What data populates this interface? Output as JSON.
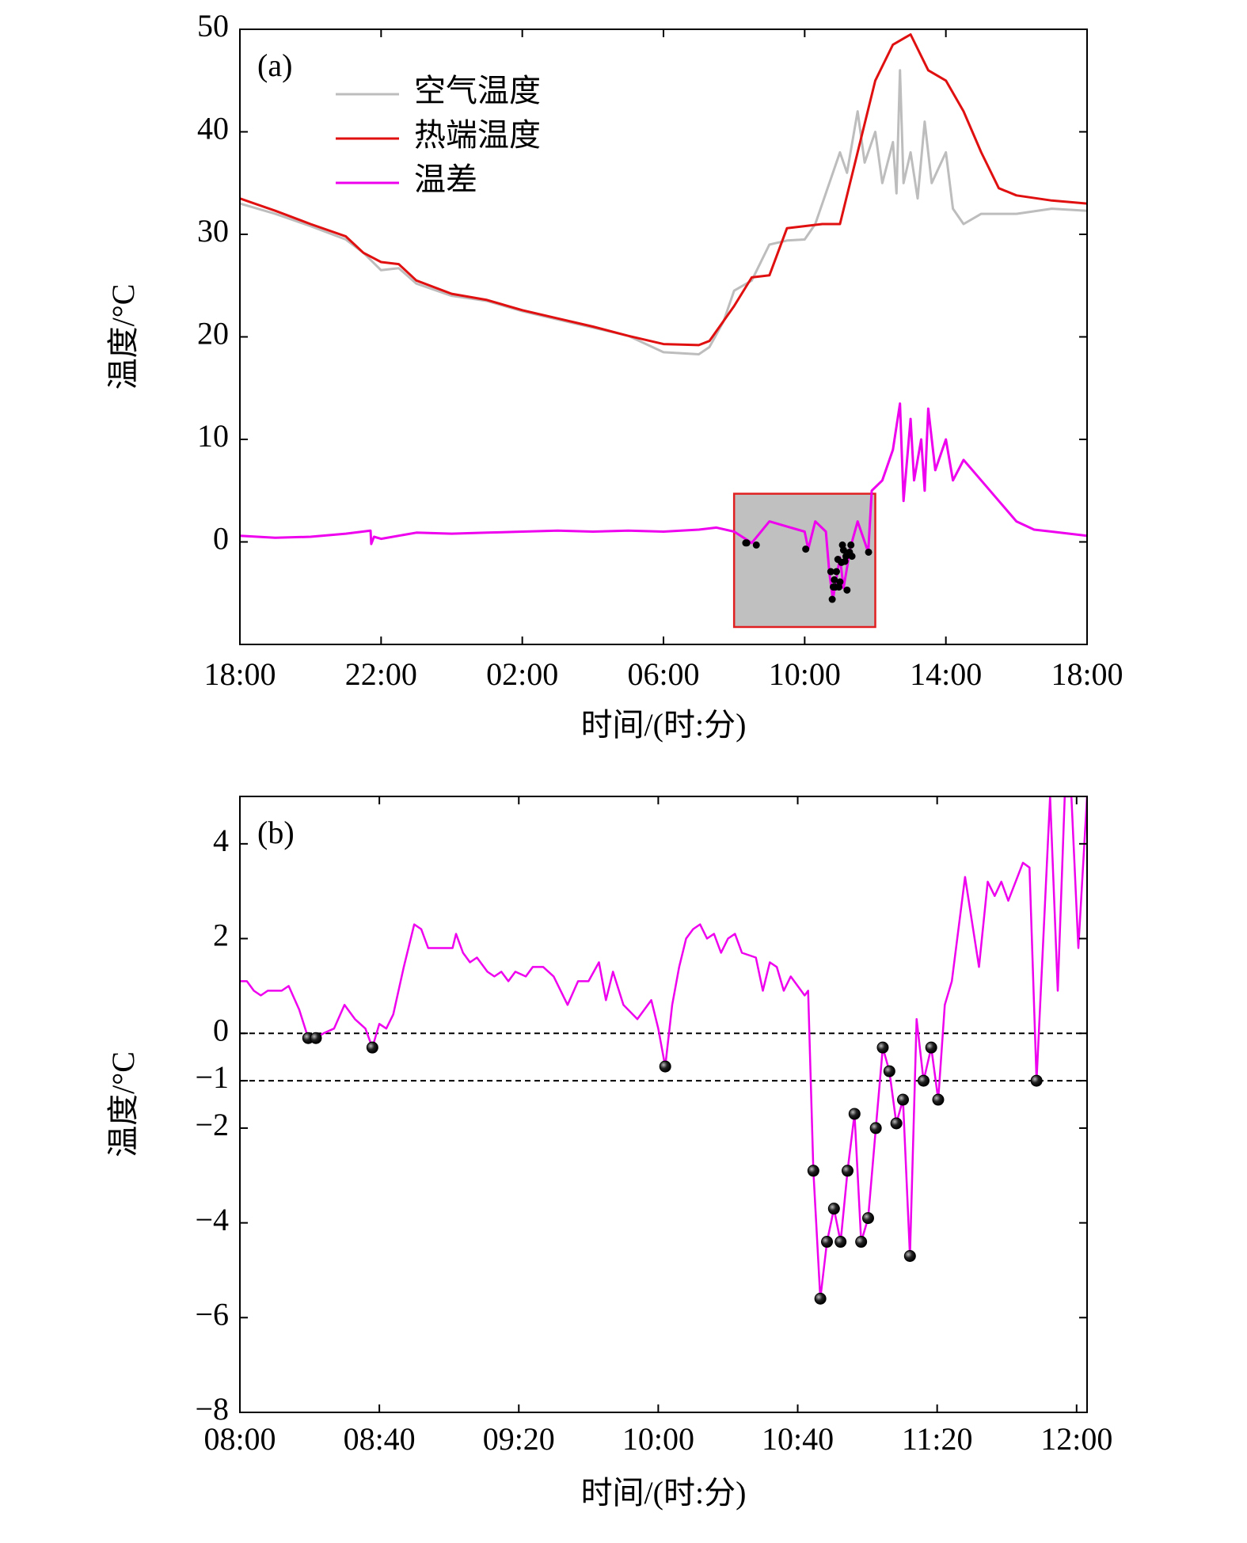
{
  "chart_data": [
    {
      "type": "line",
      "panel_label": "(a)",
      "xlabel": "时间/(时:分)",
      "ylabel": "温度/°C",
      "xlim": [
        0,
        24
      ],
      "ylim": [
        -10,
        50
      ],
      "xticks": [
        {
          "value": 0,
          "label": "18:00"
        },
        {
          "value": 4,
          "label": "22:00"
        },
        {
          "value": 8,
          "label": "02:00"
        },
        {
          "value": 12,
          "label": "06:00"
        },
        {
          "value": 16,
          "label": "10:00"
        },
        {
          "value": 20,
          "label": "14:00"
        },
        {
          "value": 24,
          "label": "18:00"
        }
      ],
      "yticks": [
        0,
        10,
        20,
        30,
        40,
        50
      ],
      "legend": "upper left",
      "highlight": {
        "x": [
          14,
          18
        ],
        "y": [
          -8.3,
          4.7
        ],
        "color": "#c0c0c0",
        "edgecolor": "#e02020"
      },
      "series": [
        {
          "name": "空气温度",
          "color": "#bdbdbd",
          "x": [
            0,
            1,
            2,
            3,
            3.5,
            4,
            4.5,
            5,
            6,
            7,
            8,
            9,
            10,
            11,
            12,
            13,
            13.3,
            13.7,
            14,
            14.5,
            15,
            15.5,
            16,
            16.3,
            16.7,
            17,
            17.2,
            17.5,
            17.7,
            18,
            18.2,
            18.5,
            18.6,
            18.7,
            18.8,
            19,
            19.2,
            19.4,
            19.6,
            20,
            20.2,
            20.5,
            21,
            22,
            23,
            24
          ],
          "values": [
            33.0,
            32.0,
            30.8,
            29.5,
            28.2,
            26.5,
            26.7,
            25.2,
            24.0,
            23.5,
            22.5,
            21.7,
            20.9,
            20.1,
            18.5,
            18.3,
            19,
            21.5,
            24.5,
            25.5,
            29,
            29.4,
            29.5,
            31,
            35,
            38,
            36,
            42,
            37,
            40,
            35,
            39,
            34,
            46,
            35,
            38,
            33.5,
            41,
            35,
            38,
            32.5,
            31,
            32,
            32,
            32.5,
            32.3
          ]
        },
        {
          "name": "热端温度",
          "color": "#e01010",
          "x": [
            0,
            1,
            2,
            3,
            3.5,
            4,
            4.5,
            5,
            6,
            7,
            8,
            9,
            10,
            11,
            12,
            13,
            13.3,
            14,
            14.5,
            15,
            15.5,
            16,
            16.5,
            17,
            17.5,
            18,
            18.5,
            19,
            19.5,
            20,
            20.5,
            21,
            21.5,
            22,
            23,
            24
          ],
          "values": [
            33.5,
            32.3,
            31.0,
            29.8,
            28.2,
            27.3,
            27.1,
            25.5,
            24.2,
            23.6,
            22.6,
            21.8,
            21,
            20.1,
            19.3,
            19.2,
            19.6,
            23,
            25.8,
            26,
            30.6,
            30.8,
            31,
            31,
            38,
            45,
            48.5,
            49.5,
            46,
            45,
            42,
            38,
            34.5,
            33.8,
            33.3,
            33.0
          ]
        },
        {
          "name": "温差",
          "color": "#ee00ee",
          "x": [
            0,
            1,
            2,
            3,
            3.7,
            3.72,
            3.8,
            4,
            5,
            6,
            7,
            8,
            9,
            10,
            11,
            12,
            13,
            13.5,
            14,
            14.5,
            15,
            15.5,
            16,
            16.1,
            16.3,
            16.6,
            16.7,
            16.8,
            16.9,
            17,
            17.1,
            17.3,
            17.5,
            17.8,
            17.9,
            18.2,
            18.5,
            18.7,
            18.8,
            19,
            19.1,
            19.3,
            19.4,
            19.5,
            19.7,
            20,
            20.2,
            20.5,
            21,
            21.5,
            22,
            22.5,
            23,
            24
          ],
          "values": [
            0.6,
            0.4,
            0.5,
            0.8,
            1.1,
            -0.2,
            0.5,
            0.3,
            0.9,
            0.8,
            0.9,
            1.0,
            1.1,
            1.0,
            1.1,
            1.0,
            1.2,
            1.4,
            1.0,
            -0.1,
            2.0,
            1.5,
            1.0,
            -0.7,
            2.0,
            1.0,
            -3,
            -5.6,
            -3.5,
            -1.5,
            -4.5,
            -0.5,
            2.0,
            -1.0,
            5,
            6,
            9,
            13.5,
            4,
            12,
            6,
            10,
            5,
            13,
            7,
            10,
            6,
            8,
            6,
            4,
            2,
            1.2,
            1.0,
            0.6
          ]
        }
      ],
      "markers": {
        "color": "#000000",
        "x": [
          14.33,
          14.36,
          14.63,
          16.03,
          16.74,
          16.78,
          16.81,
          16.84,
          16.87,
          16.9,
          16.94,
          16.97,
          17.0,
          17.04,
          17.07,
          17.1,
          17.14,
          17.17,
          17.2,
          17.27,
          17.31,
          17.34,
          17.81
        ],
        "values": [
          -0.1,
          -0.1,
          -0.3,
          -0.7,
          -2.9,
          -5.6,
          -4.4,
          -3.7,
          -4.4,
          -2.9,
          -1.7,
          -4.4,
          -3.9,
          -2.0,
          -0.3,
          -0.8,
          -1.9,
          -1.4,
          -4.7,
          -1.0,
          -0.3,
          -1.4,
          -1.0
        ]
      }
    },
    {
      "type": "line",
      "panel_label": "(b)",
      "xlabel": "时间/(时:分)",
      "ylabel": "温度/°C",
      "xlim": [
        0,
        243
      ],
      "ylim": [
        -8,
        5
      ],
      "xticks": [
        {
          "value": 0,
          "label": "08:00"
        },
        {
          "value": 40,
          "label": "08:40"
        },
        {
          "value": 80,
          "label": "09:20"
        },
        {
          "value": 120,
          "label": "10:00"
        },
        {
          "value": 160,
          "label": "10:40"
        },
        {
          "value": 200,
          "label": "11:20"
        },
        {
          "value": 240,
          "label": "12:00"
        }
      ],
      "yticks": [
        {
          "value": -8,
          "label": "−8"
        },
        {
          "value": -6,
          "label": "−6"
        },
        {
          "value": -4,
          "label": "−4"
        },
        {
          "value": -2,
          "label": "−2"
        },
        {
          "value": -1,
          "label": "−1"
        },
        0,
        2,
        4
      ],
      "hlines": [
        0,
        -1
      ],
      "series": [
        {
          "color": "#ee00ee",
          "x": [
            0,
            2,
            4,
            6,
            8,
            12,
            14,
            17,
            19.6,
            21.8,
            24,
            27,
            30,
            33,
            36,
            38,
            40,
            42,
            44,
            47,
            50,
            52,
            54,
            58,
            61,
            62,
            64,
            66,
            68,
            71,
            73,
            75,
            77,
            79,
            82,
            84,
            87,
            90,
            94,
            97,
            100,
            103,
            105,
            107,
            110,
            114,
            118,
            120,
            122,
            124,
            126,
            128,
            130,
            132,
            134,
            136,
            138,
            140,
            142,
            144,
            148,
            150,
            152,
            154,
            156,
            158,
            160,
            162,
            163,
            164.5,
            166.5,
            168.4,
            170.4,
            172.3,
            174.3,
            176.3,
            178.2,
            180.2,
            182.4,
            184.4,
            186.3,
            188.3,
            190.2,
            192.2,
            194.1,
            196.1,
            198.3,
            200.3,
            202.2,
            204.2,
            208,
            212,
            214.5,
            216.5,
            218.4,
            220.4,
            224.6,
            226.5,
            228.5,
            232.4,
            234.6,
            236.6,
            238.5,
            240.5,
            243
          ],
          "values": [
            1.1,
            1.1,
            0.9,
            0.8,
            0.9,
            0.9,
            1.0,
            0.5,
            -0.1,
            -0.1,
            0.0,
            0.1,
            0.6,
            0.3,
            0.1,
            -0.3,
            0.2,
            0.1,
            0.4,
            1.4,
            2.3,
            2.2,
            1.8,
            1.8,
            1.8,
            2.1,
            1.7,
            1.5,
            1.6,
            1.3,
            1.2,
            1.3,
            1.1,
            1.3,
            1.2,
            1.4,
            1.4,
            1.2,
            0.6,
            1.1,
            1.1,
            1.5,
            0.7,
            1.3,
            0.6,
            0.3,
            0.7,
            0.1,
            -0.7,
            0.6,
            1.4,
            2.0,
            2.2,
            2.3,
            2.0,
            2.1,
            1.7,
            2.0,
            2.1,
            1.7,
            1.6,
            0.9,
            1.5,
            1.4,
            0.9,
            1.2,
            1.0,
            0.8,
            0.9,
            -2.9,
            -5.6,
            -4.4,
            -3.7,
            -4.4,
            -2.9,
            -1.7,
            -4.4,
            -3.9,
            -2.0,
            -0.3,
            -0.8,
            -1.9,
            -1.4,
            -4.7,
            0.3,
            -1.0,
            -0.3,
            -1.4,
            0.6,
            1.1,
            3.3,
            1.4,
            3.2,
            2.9,
            3.2,
            2.8,
            3.6,
            3.5,
            -1.0,
            5.0,
            0.9,
            5,
            5,
            1.8,
            5
          ]
        }
      ],
      "markers": {
        "color": "#000000",
        "x": [
          19.6,
          21.8,
          38,
          122,
          164.5,
          166.5,
          168.4,
          170.4,
          172.3,
          174.3,
          176.3,
          178.2,
          180.2,
          182.4,
          184.4,
          186.3,
          188.3,
          190.2,
          192.2,
          196.1,
          198.3,
          200.3,
          228.5
        ],
        "values": [
          -0.1,
          -0.1,
          -0.3,
          -0.7,
          -2.9,
          -5.6,
          -4.4,
          -3.7,
          -4.4,
          -2.9,
          -1.7,
          -4.4,
          -3.9,
          -2.0,
          -0.3,
          -0.8,
          -1.9,
          -1.4,
          -4.7,
          -1.0,
          -0.3,
          -1.4,
          -1.0
        ]
      }
    }
  ]
}
